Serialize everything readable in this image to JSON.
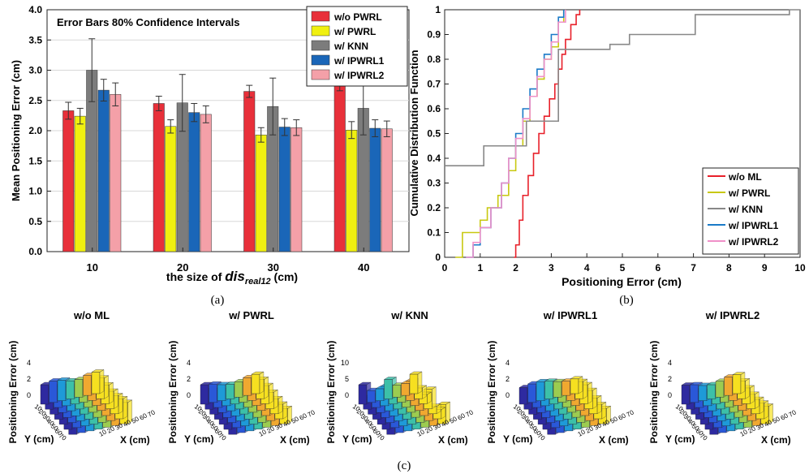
{
  "chart_data": [
    {
      "panel": "(a)",
      "type": "bar",
      "title": "Error Bars 80% Confidence Intervals",
      "xlabel_prefix": "the size of ",
      "xlabel_main": "dis",
      "xlabel_sub": "real12",
      "xlabel_suffix": " (cm)",
      "ylabel": "Mean Positioning Error (cm)",
      "ylim": [
        0,
        4
      ],
      "yticks": [
        "0.0",
        "0.5",
        "1.0",
        "1.5",
        "2.0",
        "2.5",
        "3.0",
        "3.5",
        "4.0"
      ],
      "categories": [
        "10",
        "20",
        "30",
        "40"
      ],
      "legend_position": "top-right",
      "series": [
        {
          "name": "w/o PWRL",
          "color": "#e8303a",
          "values": [
            2.33,
            2.45,
            2.65,
            2.75
          ],
          "err": [
            0.14,
            0.12,
            0.1,
            0.09
          ]
        },
        {
          "name": "w/ PWRL",
          "color": "#f0f010",
          "values": [
            2.24,
            2.07,
            1.93,
            2.01
          ],
          "err": [
            0.13,
            0.11,
            0.12,
            0.14
          ]
        },
        {
          "name": "w/ KNN",
          "color": "#7c7c7c",
          "values": [
            3.0,
            2.46,
            2.4,
            2.37
          ],
          "err": [
            0.52,
            0.47,
            0.47,
            0.44
          ]
        },
        {
          "name": "w/ IPWRL1",
          "color": "#1a66b8",
          "values": [
            2.67,
            2.3,
            2.06,
            2.04
          ],
          "err": [
            0.18,
            0.15,
            0.14,
            0.14
          ]
        },
        {
          "name": "w/ IPWRL2",
          "color": "#f4a0a8",
          "values": [
            2.6,
            2.27,
            2.05,
            2.03
          ],
          "err": [
            0.19,
            0.14,
            0.13,
            0.13
          ]
        }
      ]
    },
    {
      "panel": "(b)",
      "type": "line",
      "xlabel": "Positioning Error (cm)",
      "ylabel": "Cumulative Distribution Function",
      "xlim": [
        0,
        10
      ],
      "ylim": [
        0,
        1
      ],
      "xticks": [
        "0",
        "1",
        "2",
        "3",
        "4",
        "5",
        "6",
        "7",
        "8",
        "9",
        "10"
      ],
      "yticks": [
        "0",
        "0.1",
        "0.2",
        "0.3",
        "0.4",
        "0.5",
        "0.6",
        "0.7",
        "0.8",
        "0.9",
        "1"
      ],
      "legend_position": "bottom-right",
      "series": [
        {
          "name": "w/o ML",
          "color": "#e8202a",
          "x": [
            1.95,
            2.0,
            2.1,
            2.2,
            2.35,
            2.5,
            2.65,
            2.8,
            2.95,
            3.1,
            3.2,
            3.3,
            3.4,
            3.55,
            3.7,
            3.8
          ],
          "y": [
            0.0,
            0.05,
            0.15,
            0.25,
            0.33,
            0.42,
            0.5,
            0.57,
            0.64,
            0.7,
            0.76,
            0.82,
            0.88,
            0.94,
            0.98,
            1.0
          ]
        },
        {
          "name": "w/ PWRL",
          "color": "#c8c810",
          "x": [
            0.3,
            0.5,
            0.8,
            1.0,
            1.2,
            1.5,
            1.8,
            2.0,
            2.2,
            2.4,
            2.6,
            2.8,
            3.0,
            3.2,
            3.35
          ],
          "y": [
            0.0,
            0.1,
            0.1,
            0.15,
            0.2,
            0.25,
            0.35,
            0.45,
            0.55,
            0.65,
            0.72,
            0.8,
            0.85,
            0.95,
            1.0
          ]
        },
        {
          "name": "w/ KNN",
          "color": "#888888",
          "x": [
            0,
            1.1,
            1.1,
            1.6,
            2.3,
            2.3,
            3.2,
            3.2,
            4.65,
            4.65,
            5.2,
            5.2,
            7.05,
            7.05,
            9.7,
            9.7,
            10
          ],
          "y": [
            0.37,
            0.37,
            0.45,
            0.45,
            0.45,
            0.55,
            0.55,
            0.84,
            0.84,
            0.86,
            0.86,
            0.9,
            0.9,
            0.98,
            0.98,
            1.0,
            1.0
          ]
        },
        {
          "name": "w/ IPWRL1",
          "color": "#1a7ac8",
          "x": [
            0.6,
            0.8,
            1.0,
            1.3,
            1.6,
            1.8,
            2.0,
            2.2,
            2.4,
            2.6,
            2.8,
            3.0,
            3.2,
            3.35
          ],
          "y": [
            0.0,
            0.05,
            0.12,
            0.2,
            0.3,
            0.4,
            0.5,
            0.6,
            0.68,
            0.76,
            0.82,
            0.9,
            0.97,
            1.0
          ]
        },
        {
          "name": "w/ IPWRL2",
          "color": "#f090c8",
          "x": [
            0.6,
            0.8,
            1.0,
            1.3,
            1.6,
            1.8,
            2.0,
            2.2,
            2.4,
            2.6,
            2.8,
            3.0,
            3.2,
            3.4
          ],
          "y": [
            0.0,
            0.06,
            0.12,
            0.2,
            0.3,
            0.4,
            0.48,
            0.56,
            0.65,
            0.73,
            0.8,
            0.87,
            0.95,
            1.0
          ]
        }
      ]
    },
    {
      "panel": "(c)",
      "type": "bar3d",
      "xlabel": "X (cm)",
      "ylabel": "Y (cm)",
      "zlabel": "Positioning Error (cm)",
      "x_ticks": [
        "10",
        "20",
        "30",
        "40",
        "50",
        "60",
        "70"
      ],
      "y_ticks": [
        "10",
        "20",
        "30",
        "40",
        "50",
        "60",
        "70"
      ],
      "plots": [
        {
          "title": "w/o ML",
          "zticks": [
            "0",
            "2",
            "4"
          ],
          "zmax": 4
        },
        {
          "title": "w/ PWRL",
          "zticks": [
            "0",
            "2",
            "4"
          ],
          "zmax": 4
        },
        {
          "title": "w/ KNN",
          "zticks": [
            "0",
            "5",
            "10"
          ],
          "zmax": 10
        },
        {
          "title": "w/ IPWRL1",
          "zticks": [
            "0",
            "2",
            "4"
          ],
          "zmax": 4
        },
        {
          "title": "w/ IPWRL2",
          "zticks": [
            "0",
            "2",
            "4"
          ],
          "zmax": 4
        }
      ]
    }
  ],
  "captions": {
    "a": "(a)",
    "b": "(b)",
    "c": "(c)"
  }
}
